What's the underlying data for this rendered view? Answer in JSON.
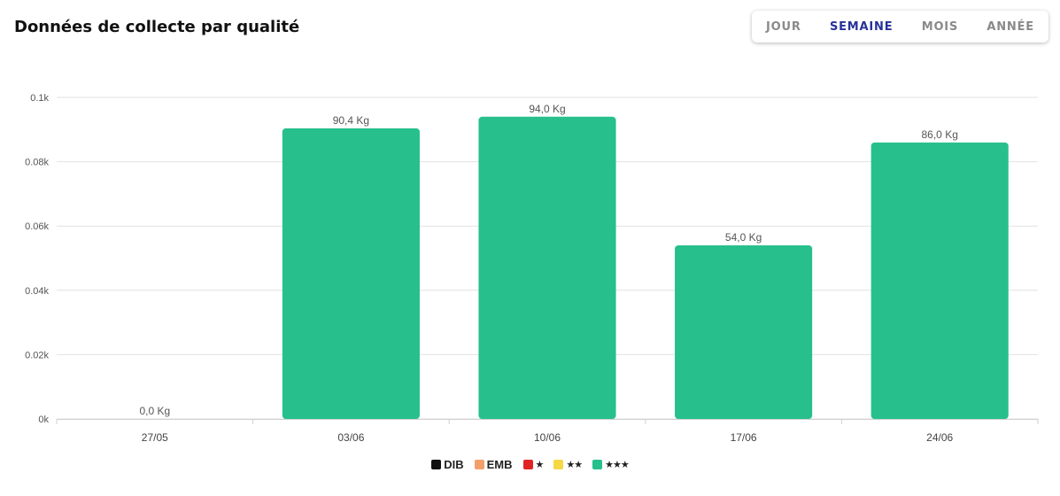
{
  "header": {
    "title": "Données de collecte par qualité"
  },
  "period_tabs": [
    {
      "label": "JOUR",
      "active": false
    },
    {
      "label": "SEMAINE",
      "active": true
    },
    {
      "label": "MOIS",
      "active": false
    },
    {
      "label": "ANNÉE",
      "active": false
    }
  ],
  "chart_data": {
    "type": "bar",
    "title": "",
    "xlabel": "",
    "ylabel": "",
    "categories": [
      "27/05",
      "03/06",
      "10/06",
      "17/06",
      "24/06"
    ],
    "series": [
      {
        "name": "DIB",
        "color": "#111111",
        "values": [
          0,
          0,
          0,
          0,
          0
        ]
      },
      {
        "name": "EMB",
        "color": "#f2a06b",
        "values": [
          0,
          0,
          0,
          0,
          0
        ]
      },
      {
        "name": "★",
        "color": "#e02424",
        "values": [
          0,
          0,
          0,
          0,
          0
        ]
      },
      {
        "name": "★★",
        "color": "#f5d844",
        "values": [
          0,
          0,
          0,
          0,
          0
        ]
      },
      {
        "name": "★★★",
        "color": "#27c08d",
        "values": [
          0.0,
          90.4,
          94.0,
          54.0,
          86.0
        ]
      }
    ],
    "data_labels": [
      "0,0 Kg",
      "90,4 Kg",
      "94,0 Kg",
      "54,0 Kg",
      "86,0 Kg"
    ],
    "ylim": [
      0,
      100
    ],
    "yticks": [
      0,
      20,
      40,
      60,
      80,
      100
    ],
    "ytick_labels": [
      "0k",
      "0.02k",
      "0.04k",
      "0.06k",
      "0.08k",
      "0.1k"
    ],
    "grid": true,
    "legend_position": "bottom-center"
  }
}
